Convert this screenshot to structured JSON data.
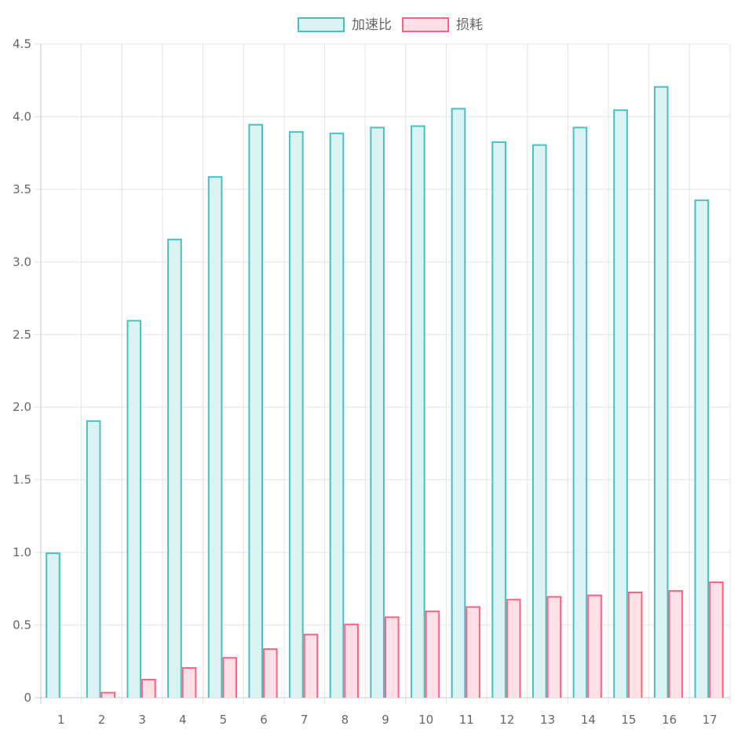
{
  "chart_data": {
    "type": "bar",
    "categories": [
      "1",
      "2",
      "3",
      "4",
      "5",
      "6",
      "7",
      "8",
      "9",
      "10",
      "11",
      "12",
      "13",
      "14",
      "15",
      "16",
      "17"
    ],
    "series": [
      {
        "name": "加速比",
        "values": [
          1.0,
          1.91,
          2.6,
          3.16,
          3.59,
          3.95,
          3.9,
          3.89,
          3.93,
          3.94,
          4.06,
          3.83,
          3.81,
          3.93,
          4.05,
          4.21,
          3.43
        ],
        "border_color": "#4bc0c0",
        "fill_color": "#dbf2f2"
      },
      {
        "name": "损耗",
        "values": [
          0,
          0.04,
          0.13,
          0.21,
          0.28,
          0.34,
          0.44,
          0.51,
          0.56,
          0.6,
          0.63,
          0.68,
          0.7,
          0.71,
          0.73,
          0.74,
          0.8
        ],
        "border_color": "#ff6384",
        "fill_color": "#ffe0e6"
      }
    ],
    "ylim": [
      0,
      4.5
    ],
    "y_ticks": [
      "0",
      "0.5",
      "1.0",
      "1.5",
      "2.0",
      "2.5",
      "3.0",
      "3.5",
      "4.0",
      "4.5"
    ],
    "y_tick_values": [
      0,
      0.5,
      1.0,
      1.5,
      2.0,
      2.5,
      3.0,
      3.5,
      4.0,
      4.5
    ],
    "grid": true,
    "legend_position": "top"
  }
}
